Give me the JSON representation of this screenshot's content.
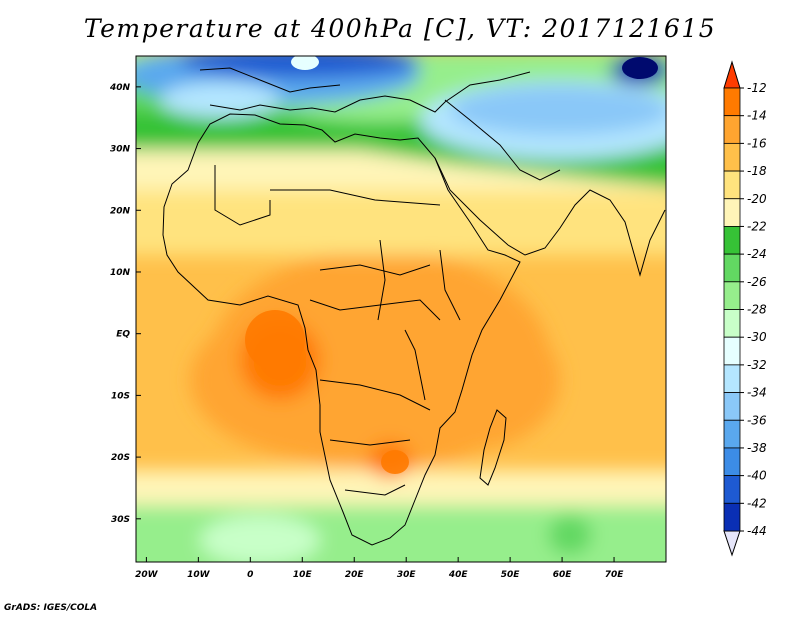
{
  "title": "Temperature at 400hPa [C], VT: 2017121615",
  "credit": "GrADS: IGES/COLA",
  "map": {
    "variable": "Temperature",
    "level": "400hPa",
    "units": "C",
    "valid_time": "2017121615",
    "lon_range": [
      -22,
      80
    ],
    "lat_range": [
      -37,
      45
    ],
    "lon_tick_values": [
      -20,
      -10,
      0,
      10,
      20,
      30,
      40,
      50,
      60,
      70
    ],
    "lon_tick_labels": [
      "20W",
      "10W",
      "0",
      "10E",
      "20E",
      "30E",
      "40E",
      "50E",
      "60E",
      "70E"
    ],
    "lat_tick_values": [
      40,
      30,
      20,
      10,
      0,
      -10,
      -20,
      -30
    ],
    "lat_tick_labels": [
      "40N",
      "30N",
      "20N",
      "10N",
      "EQ",
      "10S",
      "20S",
      "30S"
    ]
  },
  "colorbar": {
    "labels": [
      "-12",
      "-14",
      "-16",
      "-18",
      "-20",
      "-22",
      "-24",
      "-26",
      "-28",
      "-30",
      "-32",
      "-34",
      "-36",
      "-38",
      "-40",
      "-42",
      "-44"
    ],
    "colors": [
      "#ff3c00",
      "#ff7a00",
      "#ffa530",
      "#ffc04a",
      "#ffe37e",
      "#fff5b8",
      "#36c236",
      "#62d862",
      "#96ee8c",
      "#c8ffc8",
      "#e6ffff",
      "#b4e6ff",
      "#8ac8f8",
      "#5aa8ee",
      "#3c8ce6",
      "#1e5ad2",
      "#0a2fb4",
      "#000a6e"
    ],
    "top_triangle_color": "#ff3c00",
    "bottom_triangle_color": "#e6e6fa"
  }
}
